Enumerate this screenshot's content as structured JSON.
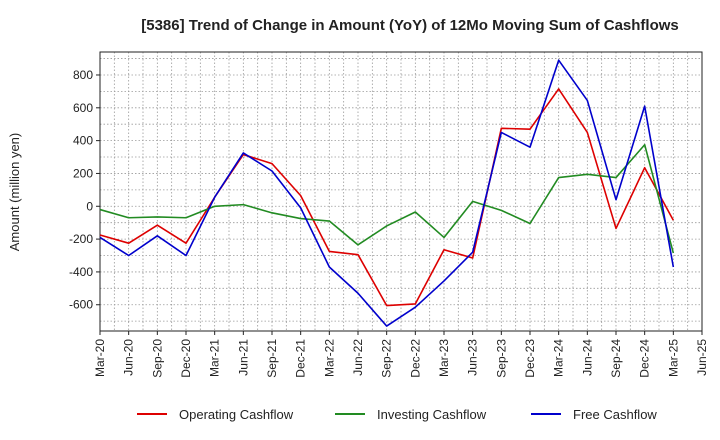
{
  "chart_data": {
    "type": "line",
    "title": "[5386]  Trend of Change in Amount (YoY) of 12Mo Moving Sum of Cashflows",
    "xlabel": "",
    "ylabel": "Amount (million yen)",
    "ylim": [
      -760,
      940
    ],
    "yticks": [
      -600,
      -400,
      -200,
      0,
      200,
      400,
      600,
      800
    ],
    "grid": true,
    "legend_position": "bottom",
    "categories": [
      "Mar-20",
      "Jun-20",
      "Sep-20",
      "Dec-20",
      "Mar-21",
      "Jun-21",
      "Sep-21",
      "Dec-21",
      "Mar-22",
      "Jun-22",
      "Sep-22",
      "Dec-22",
      "Mar-23",
      "Jun-23",
      "Sep-23",
      "Dec-23",
      "Mar-24",
      "Jun-24",
      "Sep-24",
      "Dec-24",
      "Mar-25",
      "Jun-25"
    ],
    "series": [
      {
        "name": "Operating Cashflow",
        "color": "#dd0000",
        "values": [
          -175,
          -225,
          -115,
          -225,
          55,
          315,
          260,
          65,
          -275,
          -295,
          -605,
          -595,
          -265,
          -315,
          475,
          470,
          715,
          450,
          -135,
          235,
          -85,
          null
        ]
      },
      {
        "name": "Investing Cashflow",
        "color": "#228b22",
        "values": [
          -20,
          -70,
          -65,
          -70,
          0,
          10,
          -40,
          -75,
          -90,
          -235,
          -120,
          -35,
          -190,
          30,
          -25,
          -105,
          175,
          195,
          175,
          375,
          -285,
          null
        ]
      },
      {
        "name": "Free Cashflow",
        "color": "#0000cc",
        "values": [
          -190,
          -300,
          -180,
          -300,
          55,
          325,
          215,
          -10,
          -370,
          -530,
          -730,
          -615,
          -455,
          -280,
          450,
          360,
          890,
          645,
          40,
          610,
          -370,
          null
        ]
      }
    ]
  }
}
